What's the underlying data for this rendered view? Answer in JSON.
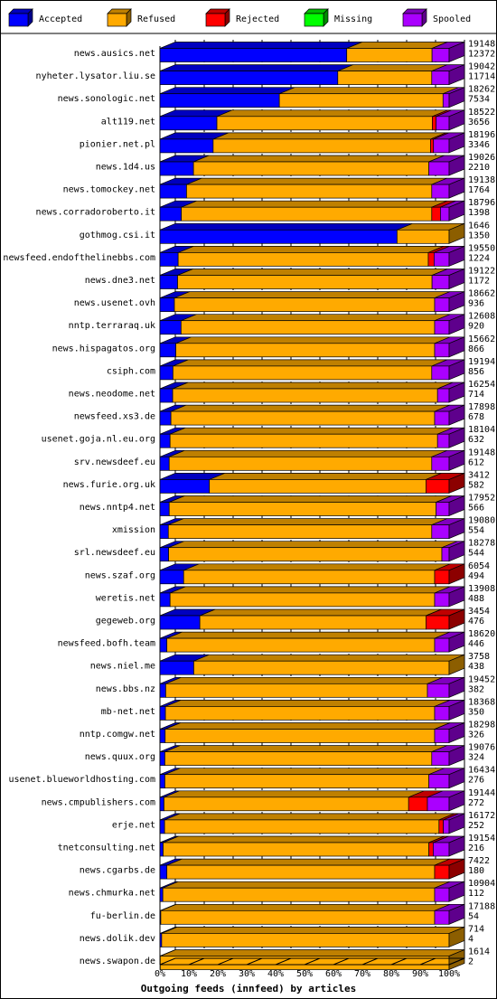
{
  "chart_data": {
    "type": "bar",
    "orientation": "horizontal",
    "stacked": true,
    "title": "",
    "xlabel": "Outgoing feeds (innfeed) by articles",
    "xlim": [
      0,
      100
    ],
    "x_ticks": [
      "0%",
      "10%",
      "20%",
      "30%",
      "40%",
      "50%",
      "60%",
      "70%",
      "80%",
      "90%",
      "100%"
    ],
    "legend_position": "top",
    "legend": [
      {
        "name": "Accepted",
        "color": "#0000ff"
      },
      {
        "name": "Refused",
        "color": "#ffaa00"
      },
      {
        "name": "Rejected",
        "color": "#ff0000"
      },
      {
        "name": "Missing",
        "color": "#00ff00"
      },
      {
        "name": "Spooled",
        "color": "#aa00ff"
      }
    ],
    "rows": [
      {
        "name": "news.ausics.net",
        "total": "19148",
        "accepted_count": "12372",
        "accepted": 64.6,
        "refused": 29.5,
        "rejected": 0,
        "missing": 0,
        "spooled": 5.9
      },
      {
        "name": "nyheter.lysator.liu.se",
        "total": "19042",
        "accepted_count": "11714",
        "accepted": 61.5,
        "refused": 32.5,
        "rejected": 0,
        "missing": 0,
        "spooled": 6.0
      },
      {
        "name": "news.sonologic.net",
        "total": "18262",
        "accepted_count": "7534",
        "accepted": 41.3,
        "refused": 56.6,
        "rejected": 0,
        "missing": 0,
        "spooled": 2.1
      },
      {
        "name": "alt119.net",
        "total": "18522",
        "accepted_count": "3656",
        "accepted": 19.7,
        "refused": 74.5,
        "rejected": 1.3,
        "missing": 0,
        "spooled": 4.5
      },
      {
        "name": "pionier.net.pl",
        "total": "18196",
        "accepted_count": "3346",
        "accepted": 18.4,
        "refused": 75.2,
        "rejected": 1.0,
        "missing": 0,
        "spooled": 5.4
      },
      {
        "name": "news.1d4.us",
        "total": "19026",
        "accepted_count": "2210",
        "accepted": 11.6,
        "refused": 81.4,
        "rejected": 0,
        "missing": 0,
        "spooled": 7.0
      },
      {
        "name": "news.tomockey.net",
        "total": "19138",
        "accepted_count": "1764",
        "accepted": 9.2,
        "refused": 84.8,
        "rejected": 0,
        "missing": 0,
        "spooled": 6.0
      },
      {
        "name": "news.corradoroberto.it",
        "total": "18796",
        "accepted_count": "1398",
        "accepted": 7.4,
        "refused": 86.6,
        "rejected": 3.0,
        "missing": 0,
        "spooled": 3.0
      },
      {
        "name": "gothmog.csi.it",
        "total": "1646",
        "accepted_count": "1350",
        "accepted": 82.0,
        "refused": 18.0,
        "rejected": 0,
        "missing": 0,
        "spooled": 0
      },
      {
        "name": "newsfeed.endofthelinebbs.com",
        "total": "19550",
        "accepted_count": "1224",
        "accepted": 6.3,
        "refused": 86.5,
        "rejected": 2.0,
        "missing": 0,
        "spooled": 5.2
      },
      {
        "name": "news.dne3.net",
        "total": "19122",
        "accepted_count": "1172",
        "accepted": 6.1,
        "refused": 88.0,
        "rejected": 0,
        "missing": 0,
        "spooled": 5.9
      },
      {
        "name": "news.usenet.ovh",
        "total": "18662",
        "accepted_count": "936",
        "accepted": 5.0,
        "refused": 90.0,
        "rejected": 0,
        "missing": 0,
        "spooled": 5.0
      },
      {
        "name": "nntp.terraraq.uk",
        "total": "12608",
        "accepted_count": "920",
        "accepted": 7.3,
        "refused": 87.7,
        "rejected": 0,
        "missing": 0,
        "spooled": 5.0
      },
      {
        "name": "news.hispagatos.org",
        "total": "15662",
        "accepted_count": "866",
        "accepted": 5.5,
        "refused": 89.5,
        "rejected": 0,
        "missing": 0,
        "spooled": 5.0
      },
      {
        "name": "csiph.com",
        "total": "19194",
        "accepted_count": "856",
        "accepted": 4.5,
        "refused": 89.5,
        "rejected": 0,
        "missing": 0,
        "spooled": 6.0
      },
      {
        "name": "news.neodome.net",
        "total": "16254",
        "accepted_count": "714",
        "accepted": 4.4,
        "refused": 91.6,
        "rejected": 0,
        "missing": 0,
        "spooled": 4.0
      },
      {
        "name": "newsfeed.xs3.de",
        "total": "17898",
        "accepted_count": "678",
        "accepted": 3.8,
        "refused": 91.2,
        "rejected": 0,
        "missing": 0,
        "spooled": 5.0
      },
      {
        "name": "usenet.goja.nl.eu.org",
        "total": "18104",
        "accepted_count": "632",
        "accepted": 3.5,
        "refused": 92.5,
        "rejected": 0,
        "missing": 0,
        "spooled": 4.0
      },
      {
        "name": "srv.newsdeef.eu",
        "total": "19148",
        "accepted_count": "612",
        "accepted": 3.2,
        "refused": 90.8,
        "rejected": 0,
        "missing": 0,
        "spooled": 6.0
      },
      {
        "name": "news.furie.org.uk",
        "total": "3412",
        "accepted_count": "582",
        "accepted": 17.1,
        "refused": 74.9,
        "rejected": 8.0,
        "missing": 0,
        "spooled": 0
      },
      {
        "name": "news.nntp4.net",
        "total": "17952",
        "accepted_count": "566",
        "accepted": 3.2,
        "refused": 92.3,
        "rejected": 0,
        "missing": 0,
        "spooled": 4.5
      },
      {
        "name": "xmission",
        "total": "19080",
        "accepted_count": "554",
        "accepted": 2.9,
        "refused": 91.1,
        "rejected": 0,
        "missing": 0,
        "spooled": 6.0
      },
      {
        "name": "srl.newsdeef.eu",
        "total": "18278",
        "accepted_count": "544",
        "accepted": 3.0,
        "refused": 94.5,
        "rejected": 0,
        "missing": 0,
        "spooled": 2.5
      },
      {
        "name": "news.szaf.org",
        "total": "6054",
        "accepted_count": "494",
        "accepted": 8.2,
        "refused": 86.8,
        "rejected": 5.0,
        "missing": 0,
        "spooled": 0
      },
      {
        "name": "weretis.net",
        "total": "13908",
        "accepted_count": "488",
        "accepted": 3.5,
        "refused": 91.5,
        "rejected": 0,
        "missing": 0,
        "spooled": 5.0
      },
      {
        "name": "gegeweb.org",
        "total": "3454",
        "accepted_count": "476",
        "accepted": 13.8,
        "refused": 78.2,
        "rejected": 8.0,
        "missing": 0,
        "spooled": 0
      },
      {
        "name": "newsfeed.bofh.team",
        "total": "18620",
        "accepted_count": "446",
        "accepted": 2.4,
        "refused": 92.6,
        "rejected": 0,
        "missing": 0,
        "spooled": 5.0
      },
      {
        "name": "news.niel.me",
        "total": "3758",
        "accepted_count": "438",
        "accepted": 11.7,
        "refused": 88.3,
        "rejected": 0,
        "missing": 0,
        "spooled": 0
      },
      {
        "name": "news.bbs.nz",
        "total": "19452",
        "accepted_count": "382",
        "accepted": 2.0,
        "refused": 90.5,
        "rejected": 0,
        "missing": 0,
        "spooled": 7.5
      },
      {
        "name": "mb-net.net",
        "total": "18368",
        "accepted_count": "350",
        "accepted": 1.9,
        "refused": 93.1,
        "rejected": 0,
        "missing": 0,
        "spooled": 5.0
      },
      {
        "name": "nntp.comgw.net",
        "total": "18298",
        "accepted_count": "326",
        "accepted": 1.8,
        "refused": 93.2,
        "rejected": 0,
        "missing": 0,
        "spooled": 5.0
      },
      {
        "name": "news.quux.org",
        "total": "19076",
        "accepted_count": "324",
        "accepted": 1.7,
        "refused": 92.3,
        "rejected": 0,
        "missing": 0,
        "spooled": 6.0
      },
      {
        "name": "usenet.blueworldhosting.com",
        "total": "16434",
        "accepted_count": "276",
        "accepted": 1.7,
        "refused": 91.3,
        "rejected": 0,
        "missing": 0,
        "spooled": 7.0
      },
      {
        "name": "news.cmpublishers.com",
        "total": "19144",
        "accepted_count": "272",
        "accepted": 1.4,
        "refused": 84.6,
        "rejected": 6.5,
        "missing": 0,
        "spooled": 7.5
      },
      {
        "name": "erje.net",
        "total": "16172",
        "accepted_count": "252",
        "accepted": 1.6,
        "refused": 94.9,
        "rejected": 1.5,
        "missing": 0,
        "spooled": 2.0
      },
      {
        "name": "tnetconsulting.net",
        "total": "19154",
        "accepted_count": "216",
        "accepted": 1.1,
        "refused": 91.9,
        "rejected": 1.5,
        "missing": 0,
        "spooled": 5.5
      },
      {
        "name": "news.cgarbs.de",
        "total": "7422",
        "accepted_count": "180",
        "accepted": 2.4,
        "refused": 92.6,
        "rejected": 5.0,
        "missing": 0,
        "spooled": 0
      },
      {
        "name": "news.chmurka.net",
        "total": "10904",
        "accepted_count": "112",
        "accepted": 1.0,
        "refused": 94.0,
        "rejected": 0,
        "missing": 0,
        "spooled": 5.0
      },
      {
        "name": "fu-berlin.de",
        "total": "17188",
        "accepted_count": "54",
        "accepted": 0.3,
        "refused": 94.7,
        "rejected": 0,
        "missing": 0,
        "spooled": 5.0
      },
      {
        "name": "news.dolik.dev",
        "total": "714",
        "accepted_count": "4",
        "accepted": 0.6,
        "refused": 99.4,
        "rejected": 0,
        "missing": 0,
        "spooled": 0
      },
      {
        "name": "news.swapon.de",
        "total": "1614",
        "accepted_count": "2",
        "accepted": 0.1,
        "refused": 99.9,
        "rejected": 0,
        "missing": 0,
        "spooled": 0
      }
    ]
  }
}
